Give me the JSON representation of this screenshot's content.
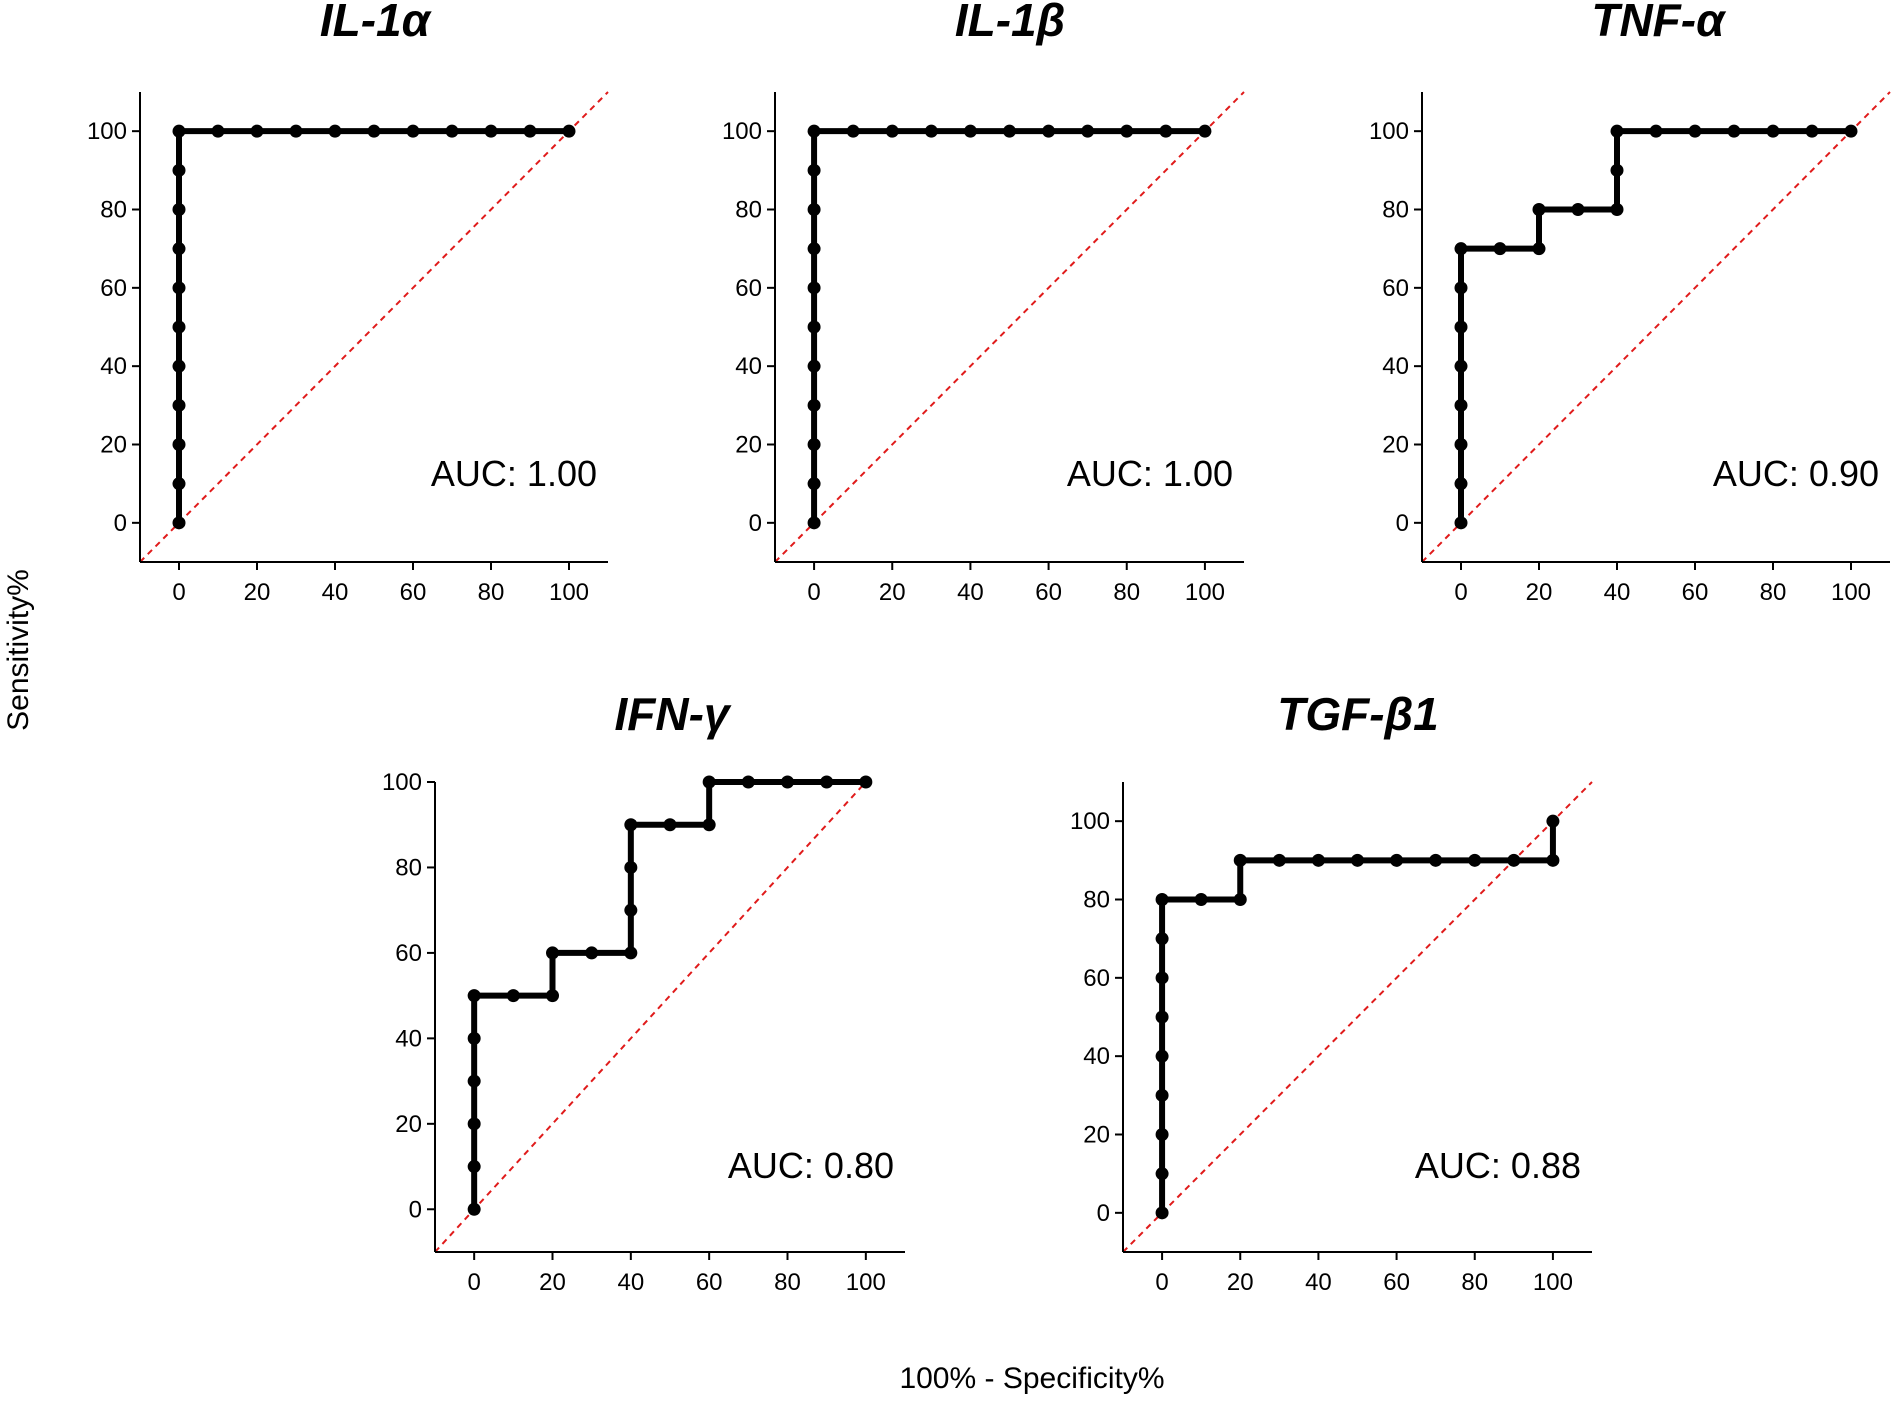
{
  "figure": {
    "shared_ylabel": "Sensitivity%",
    "shared_xlabel": "100% - Specificity%"
  },
  "chart_data": [
    {
      "type": "line",
      "title": "IL-1α",
      "auc_label": "AUC: 1.00",
      "xlim": [
        -10,
        110
      ],
      "ylim": [
        -10,
        110
      ],
      "xticks": [
        0,
        20,
        40,
        60,
        80,
        100
      ],
      "yticks": [
        0,
        20,
        40,
        60,
        80,
        100
      ],
      "reference_line": {
        "from": [
          -10,
          -10
        ],
        "to": [
          110,
          110
        ],
        "color": "#e01b1b",
        "style": "dashed"
      },
      "x": [
        0,
        0,
        0,
        0,
        0,
        0,
        0,
        0,
        0,
        0,
        0,
        10,
        20,
        30,
        40,
        50,
        60,
        70,
        80,
        90,
        100
      ],
      "y": [
        0,
        10,
        20,
        30,
        40,
        50,
        60,
        70,
        80,
        90,
        100,
        100,
        100,
        100,
        100,
        100,
        100,
        100,
        100,
        100,
        100
      ]
    },
    {
      "type": "line",
      "title": "IL-1β",
      "auc_label": "AUC: 1.00",
      "xlim": [
        -10,
        110
      ],
      "ylim": [
        -10,
        110
      ],
      "xticks": [
        0,
        20,
        40,
        60,
        80,
        100
      ],
      "yticks": [
        0,
        20,
        40,
        60,
        80,
        100
      ],
      "reference_line": {
        "from": [
          -10,
          -10
        ],
        "to": [
          110,
          110
        ],
        "color": "#e01b1b",
        "style": "dashed"
      },
      "x": [
        0,
        0,
        0,
        0,
        0,
        0,
        0,
        0,
        0,
        0,
        0,
        10,
        20,
        30,
        40,
        50,
        60,
        70,
        80,
        90,
        100
      ],
      "y": [
        0,
        10,
        20,
        30,
        40,
        50,
        60,
        70,
        80,
        90,
        100,
        100,
        100,
        100,
        100,
        100,
        100,
        100,
        100,
        100,
        100
      ]
    },
    {
      "type": "line",
      "title": "TNF-α",
      "auc_label": "AUC: 0.90",
      "xlim": [
        -10,
        110
      ],
      "ylim": [
        -10,
        110
      ],
      "xticks": [
        0,
        20,
        40,
        60,
        80,
        100
      ],
      "yticks": [
        0,
        20,
        40,
        60,
        80,
        100
      ],
      "reference_line": {
        "from": [
          -10,
          -10
        ],
        "to": [
          110,
          110
        ],
        "color": "#e01b1b",
        "style": "dashed"
      },
      "x": [
        0,
        0,
        0,
        0,
        0,
        0,
        0,
        0,
        10,
        20,
        20,
        30,
        40,
        40,
        40,
        50,
        60,
        70,
        80,
        90,
        100
      ],
      "y": [
        0,
        10,
        20,
        30,
        40,
        50,
        60,
        70,
        70,
        70,
        80,
        80,
        80,
        90,
        100,
        100,
        100,
        100,
        100,
        100,
        100
      ]
    },
    {
      "type": "line",
      "title": "IFN-γ",
      "auc_label": "AUC: 0.80",
      "xlim": [
        -10,
        110
      ],
      "ylim": [
        -10,
        100
      ],
      "xticks": [
        0,
        20,
        40,
        60,
        80,
        100
      ],
      "yticks": [
        0,
        20,
        40,
        60,
        80,
        100
      ],
      "reference_line": {
        "from": [
          -10,
          -10
        ],
        "to": [
          100,
          100
        ],
        "color": "#e01b1b",
        "style": "dashed"
      },
      "x": [
        0,
        0,
        0,
        0,
        0,
        0,
        10,
        20,
        20,
        30,
        40,
        40,
        40,
        40,
        50,
        60,
        60,
        70,
        80,
        90,
        100
      ],
      "y": [
        0,
        10,
        20,
        30,
        40,
        50,
        50,
        50,
        60,
        60,
        60,
        70,
        80,
        90,
        90,
        90,
        100,
        100,
        100,
        100,
        100
      ]
    },
    {
      "type": "line",
      "title": "TGF-β1",
      "auc_label": "AUC: 0.88",
      "xlim": [
        -10,
        110
      ],
      "ylim": [
        -10,
        110
      ],
      "xticks": [
        0,
        20,
        40,
        60,
        80,
        100
      ],
      "yticks": [
        0,
        20,
        40,
        60,
        80,
        100
      ],
      "reference_line": {
        "from": [
          -10,
          -10
        ],
        "to": [
          110,
          110
        ],
        "color": "#e01b1b",
        "style": "dashed"
      },
      "x": [
        0,
        0,
        0,
        0,
        0,
        0,
        0,
        0,
        0,
        10,
        20,
        20,
        30,
        40,
        50,
        60,
        70,
        80,
        90,
        100,
        100
      ],
      "y": [
        0,
        10,
        20,
        30,
        40,
        50,
        60,
        70,
        80,
        80,
        80,
        90,
        90,
        90,
        90,
        90,
        90,
        90,
        90,
        90,
        100
      ]
    }
  ]
}
